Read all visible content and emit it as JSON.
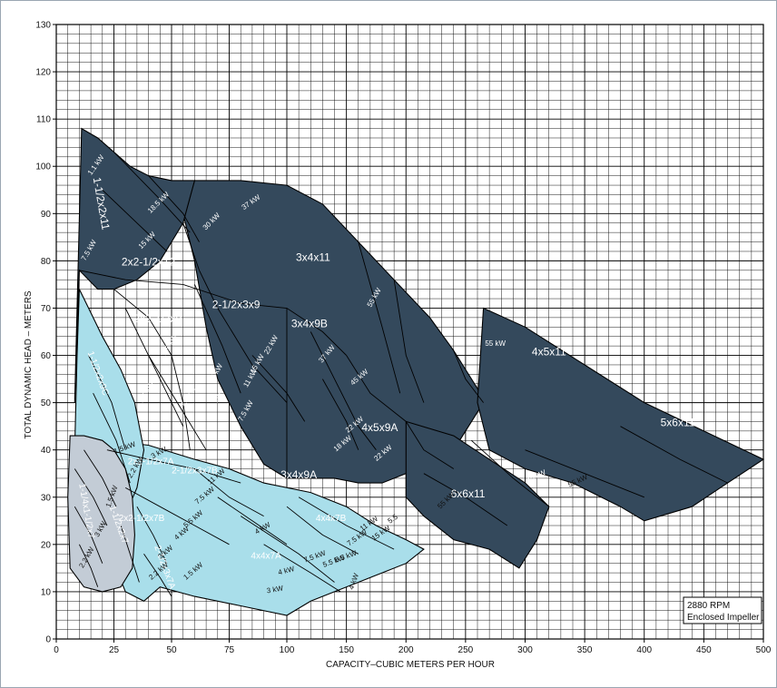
{
  "chart_data": {
    "type": "pump-selection-chart",
    "xlabel": "CAPACITY–CUBIC METERS PER HOUR",
    "ylabel": "TOTAL DYNAMIC HEAD – METERS",
    "xlim": [
      0,
      500
    ],
    "ylim": [
      0,
      130
    ],
    "x_ticks": [
      0,
      25,
      50,
      75,
      100,
      150,
      200,
      250,
      300,
      350,
      400,
      450,
      500
    ],
    "y_ticks": [
      0,
      10,
      20,
      30,
      40,
      50,
      60,
      70,
      80,
      90,
      100,
      110,
      120,
      130
    ],
    "grid": true,
    "x_scale": "piecewise-linear (0–100 expanded, 100–500 compressed)",
    "note": {
      "line1": "2880 RPM",
      "line2": "Enclosed Impeller"
    },
    "colors": {
      "dark": "#34495c",
      "light": "#a9deea",
      "grey": "#c3ccd6",
      "grid": "#000000"
    },
    "pumps": [
      {
        "name": "3x4x11",
        "region": "dark",
        "label_at": [
          122,
          80
        ],
        "outline": [
          [
            60,
            97
          ],
          [
            80,
            97
          ],
          [
            100,
            96
          ],
          [
            130,
            92
          ],
          [
            160,
            84
          ],
          [
            190,
            76
          ],
          [
            220,
            68
          ],
          [
            240,
            61
          ],
          [
            260,
            53
          ],
          [
            265,
            50
          ],
          [
            240,
            40
          ],
          [
            210,
            36
          ],
          [
            180,
            33
          ],
          [
            160,
            33
          ],
          [
            140,
            34
          ],
          [
            120,
            34
          ],
          [
            100,
            34
          ],
          [
            90,
            37
          ],
          [
            80,
            45
          ],
          [
            70,
            55
          ],
          [
            65,
            66
          ],
          [
            60,
            80
          ],
          [
            55,
            90
          ]
        ]
      },
      {
        "name": "1-1/2x2x11",
        "region": "dark",
        "label_at": [
          18,
          92
        ],
        "outline": [
          [
            11,
            108
          ],
          [
            18,
            106
          ],
          [
            25,
            103
          ],
          [
            32,
            100
          ],
          [
            40,
            98
          ],
          [
            50,
            97
          ],
          [
            60,
            97
          ],
          [
            55,
            88
          ],
          [
            45,
            80
          ],
          [
            35,
            76
          ],
          [
            25,
            74
          ],
          [
            18,
            74
          ],
          [
            14,
            76
          ],
          [
            10,
            78
          ],
          [
            8,
            50
          ]
        ]
      },
      {
        "name": "2x2-1/2x12",
        "region": "dark",
        "label_at": [
          40,
          79
        ]
      },
      {
        "name": "2x2-1/2x9",
        "region": "dark",
        "label_at": [
          44,
          67
        ]
      },
      {
        "name": "2-1/2x3x9",
        "region": "dark",
        "label_at": [
          78,
          70
        ]
      },
      {
        "name": "3x4x9B",
        "region": "dark",
        "label_at": [
          119,
          66
        ]
      },
      {
        "name": "4x5x11",
        "region": "dark",
        "label_at": [
          320,
          60
        ],
        "outline": [
          [
            265,
            70
          ],
          [
            300,
            66
          ],
          [
            350,
            58
          ],
          [
            400,
            50
          ],
          [
            450,
            44
          ],
          [
            500,
            38
          ],
          [
            470,
            33
          ],
          [
            440,
            28
          ],
          [
            400,
            25
          ],
          [
            380,
            28
          ],
          [
            340,
            33
          ],
          [
            300,
            36
          ],
          [
            270,
            40
          ],
          [
            260,
            50
          ]
        ]
      },
      {
        "name": "4x5x9A",
        "region": "dark",
        "label_at": [
          178,
          44
        ]
      },
      {
        "name": "5x6x11",
        "region": "dark",
        "label_at": [
          428,
          45
        ]
      },
      {
        "name": "6x6x11",
        "region": "dark",
        "label_at": [
          252,
          30
        ],
        "outline": [
          [
            200,
            46
          ],
          [
            240,
            43
          ],
          [
            270,
            38
          ],
          [
            300,
            33
          ],
          [
            320,
            28
          ],
          [
            310,
            21
          ],
          [
            295,
            15
          ],
          [
            270,
            19
          ],
          [
            240,
            21
          ],
          [
            215,
            26
          ],
          [
            200,
            30
          ]
        ]
      },
      {
        "name": "3x4x9A",
        "region": "dark",
        "label_at": [
          110,
          34
        ]
      },
      {
        "name": "1-1/2x2x9C",
        "region": "light",
        "label_at": [
          17,
          56
        ],
        "outline": [
          [
            10,
            74
          ],
          [
            14,
            70
          ],
          [
            20,
            64
          ],
          [
            28,
            57
          ],
          [
            34,
            50
          ],
          [
            38,
            40
          ],
          [
            35,
            32
          ],
          [
            28,
            24
          ],
          [
            20,
            20
          ],
          [
            14,
            19
          ],
          [
            10,
            25
          ],
          [
            8,
            40
          ],
          [
            9,
            60
          ]
        ]
      },
      {
        "name": "2x2-1/2x7A",
        "region": "light",
        "label_at": [
          41,
          37
        ]
      },
      {
        "name": "2-1/2x3x7B",
        "region": "light",
        "label_at": [
          60,
          35
        ]
      },
      {
        "name": "2x2-1/2x7B",
        "region": "light",
        "label_at": [
          37,
          25
        ]
      },
      {
        "name": "4x4x7B",
        "region": "light",
        "label_at": [
          137,
          25
        ]
      },
      {
        "name": "4x4x7A",
        "region": "light",
        "label_at": [
          91,
          17
        ]
      },
      {
        "name": "2-1/2x3x7A",
        "region": "light",
        "label_at": [
          46,
          15
        ]
      },
      {
        "name": "1-1/2x2x7",
        "region": "light",
        "label_at": [
          26,
          24
        ]
      },
      {
        "name": "1-1/4x1-1/2x7",
        "region": "grey",
        "label_at": [
          12,
          27
        ],
        "outline": [
          [
            6,
            43
          ],
          [
            12,
            43
          ],
          [
            20,
            42
          ],
          [
            25,
            40
          ],
          [
            30,
            36
          ],
          [
            33,
            30
          ],
          [
            34,
            22
          ],
          [
            33,
            15
          ],
          [
            28,
            11
          ],
          [
            20,
            10
          ],
          [
            12,
            11
          ],
          [
            6,
            15
          ],
          [
            5,
            30
          ]
        ]
      }
    ],
    "power_labels": [
      "1.1 kW",
      "18.5 kW",
      "15 kW",
      "7.5 kW",
      "30 kW",
      "37 kW",
      "55 kW",
      "22 kW",
      "15 kW",
      "11 kW",
      "7.5 kW",
      "5.5 kW",
      "7.5 kW",
      "5.5 kW",
      "11 kW",
      "15 kW",
      "37 kW",
      "45 kW",
      "22 kW",
      "18 kW",
      "22 kW",
      "55 kW",
      "55 kW",
      "45 kW",
      "55 kW",
      "15 kW",
      "11 kW",
      "7.5 kW",
      "5.5 kW",
      "4 kW",
      "3 kW",
      "7.5 kW",
      "5.5 kW",
      "4 kW",
      "3 kW",
      "2.2 kW",
      "1.5 kW",
      "11 kW",
      "7.5 kW",
      "5.5 kW",
      "4 kW",
      "3 kW",
      "2.2 kW",
      "1.5 kW",
      "3 kW",
      "2.2 kW",
      "1.5 kW",
      "4 kW",
      "5.5"
    ]
  }
}
